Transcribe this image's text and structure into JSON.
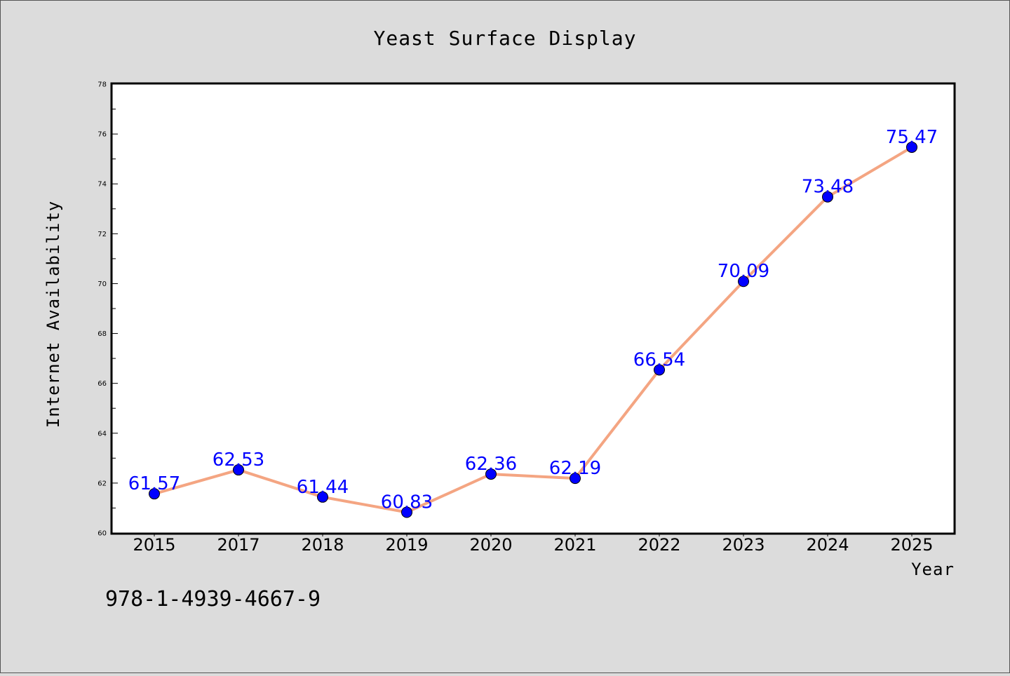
{
  "chart_data": {
    "type": "line",
    "title": "Yeast Surface Display",
    "xlabel": "Year",
    "ylabel": "Internet Availability",
    "categories": [
      "2015",
      "2017",
      "2018",
      "2019",
      "2020",
      "2021",
      "2022",
      "2023",
      "2024",
      "2025"
    ],
    "series": [
      {
        "values": [
          61.57,
          62.53,
          61.44,
          60.83,
          62.36,
          62.19,
          66.54,
          70.09,
          73.48,
          75.47
        ],
        "data_labels": [
          "61.57",
          "62.53",
          "61.44",
          "60.83",
          "62.36",
          "62.19",
          "66.54",
          "70.09",
          "73.48",
          "75.47"
        ]
      }
    ],
    "ylim": [
      60,
      78
    ],
    "yticks": [
      "60",
      "62",
      "64",
      "66",
      "68",
      "70",
      "72",
      "74",
      "76",
      "78"
    ],
    "grid": false,
    "line_color": "#f4a582",
    "marker_color": "#0000ff",
    "label_color": "#0000ff"
  },
  "footer": {
    "isbn": "978-1-4939-4667-9"
  }
}
